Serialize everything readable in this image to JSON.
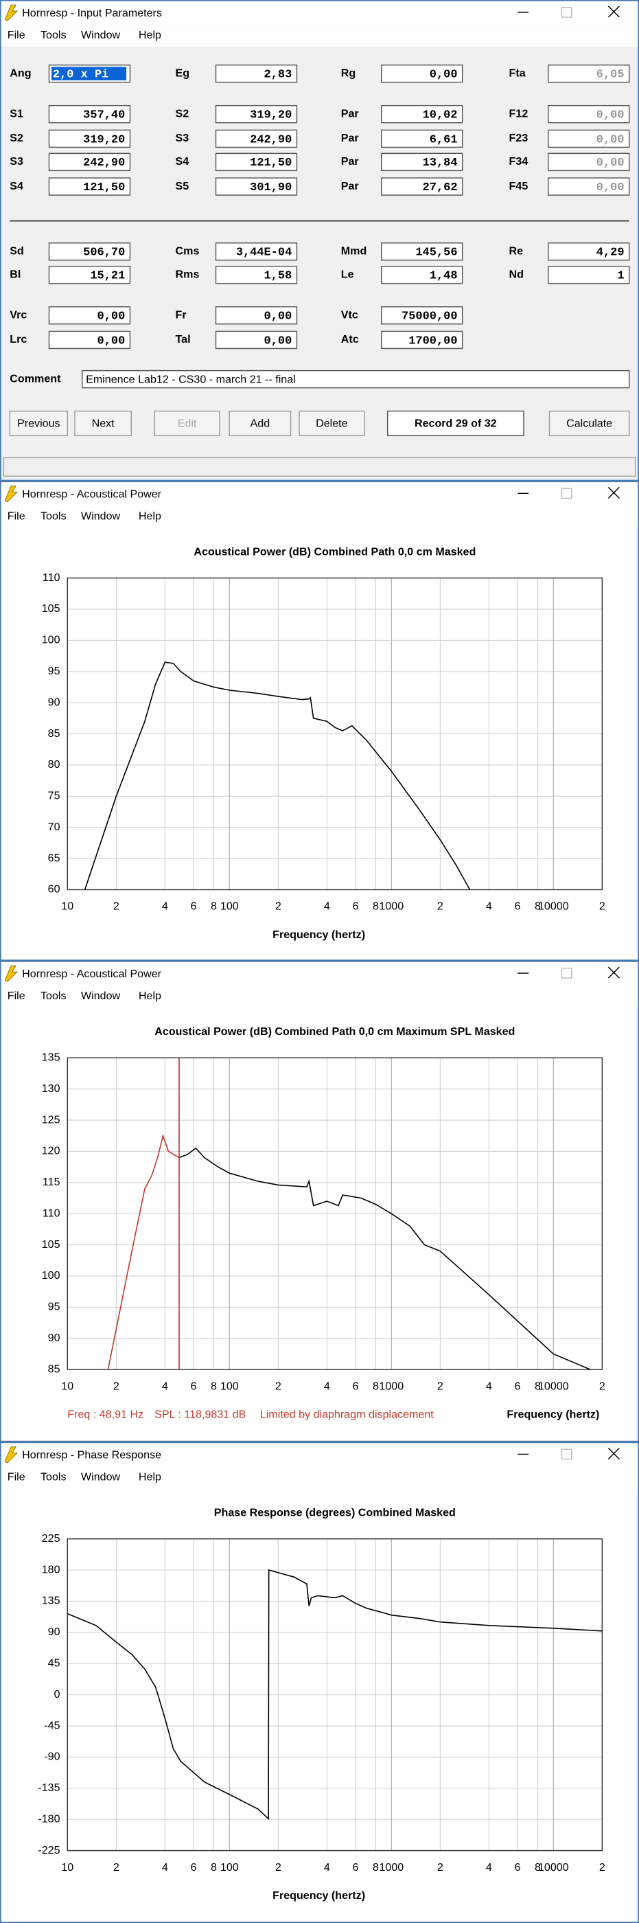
{
  "windows": [
    {
      "title": "Hornresp - Input Parameters",
      "menu": [
        "File",
        "Tools",
        "Window",
        "Help"
      ],
      "rows": [
        [
          {
            "label": "Ang",
            "value": "2,0 x Pi"
          },
          {
            "label": "Eg",
            "value": "2,83"
          },
          {
            "label": "Rg",
            "value": "0,00"
          },
          {
            "label": "Fta",
            "value": "6,05",
            "disabled": true
          }
        ],
        [
          {
            "label": "S1",
            "value": "357,40"
          },
          {
            "label": "S2",
            "value": "319,20"
          },
          {
            "label": "Par",
            "value": "10,02"
          },
          {
            "label": "F12",
            "value": "0,00",
            "disabled": true
          }
        ],
        [
          {
            "label": "S2",
            "value": "319,20"
          },
          {
            "label": "S3",
            "value": "242,90"
          },
          {
            "label": "Par",
            "value": "6,61"
          },
          {
            "label": "F23",
            "value": "0,00",
            "disabled": true
          }
        ],
        [
          {
            "label": "S3",
            "value": "242,90"
          },
          {
            "label": "S4",
            "value": "121,50"
          },
          {
            "label": "Par",
            "value": "13,84"
          },
          {
            "label": "F34",
            "value": "0,00",
            "disabled": true
          }
        ],
        [
          {
            "label": "S4",
            "value": "121,50"
          },
          {
            "label": "S5",
            "value": "301,90"
          },
          {
            "label": "Par",
            "value": "27,62"
          },
          {
            "label": "F45",
            "value": "0,00",
            "disabled": true
          }
        ],
        [
          {
            "label": "Sd",
            "value": "506,70"
          },
          {
            "label": "Cms",
            "value": "3,44E-04"
          },
          {
            "label": "Mmd",
            "value": "145,56"
          },
          {
            "label": "Re",
            "value": "4,29"
          }
        ],
        [
          {
            "label": "Bl",
            "value": "15,21"
          },
          {
            "label": "Rms",
            "value": "1,58"
          },
          {
            "label": "Le",
            "value": "1,48"
          },
          {
            "label": "Nd",
            "value": "1"
          }
        ],
        [
          {
            "label": "Vrc",
            "value": "0,00"
          },
          {
            "label": "Fr",
            "value": "0,00"
          },
          {
            "label": "Vtc",
            "value": "75000,00"
          }
        ],
        [
          {
            "label": "Lrc",
            "value": "0,00"
          },
          {
            "label": "Tal",
            "value": "0,00"
          },
          {
            "label": "Atc",
            "value": "1700,00"
          }
        ]
      ],
      "comment_label": "Comment",
      "comment": "Eminence Lab12 - CS30 - march 21 -- final",
      "buttons": [
        {
          "label": "Previous"
        },
        {
          "label": "Next"
        },
        {
          "label": "Edit",
          "disabled": true
        },
        {
          "label": "Add"
        },
        {
          "label": "Delete"
        },
        {
          "label": "Calculate"
        }
      ],
      "record": "Record 29 of 32"
    },
    {
      "title": "Hornresp - Acoustical Power",
      "menu": [
        "File",
        "Tools",
        "Window",
        "Help"
      ],
      "chart": {
        "type": "line",
        "title": "Acoustical Power (dB)   Combined   Path 0,0 cm   Masked",
        "xlabel": "Frequency (hertz)",
        "xlog": true,
        "grid": true,
        "xlim": [
          10,
          20000
        ],
        "ylim": [
          60,
          110
        ],
        "xticks": [
          10,
          {
            "value": 20,
            "label": "2"
          },
          {
            "value": 40,
            "label": "4"
          },
          {
            "value": 60,
            "label": "6"
          },
          {
            "value": 80,
            "label": "8"
          },
          100,
          {
            "value": 200,
            "label": "2"
          },
          {
            "value": 400,
            "label": "4"
          },
          {
            "value": 600,
            "label": "6"
          },
          {
            "value": 800,
            "label": "8"
          },
          1000,
          {
            "value": 2000,
            "label": "2"
          },
          {
            "value": 4000,
            "label": "4"
          },
          {
            "value": 6000,
            "label": "6"
          },
          {
            "value": 8000,
            "label": "8"
          },
          10000,
          {
            "value": 20000,
            "label": "2"
          }
        ],
        "yticks": [
          60,
          65,
          70,
          75,
          80,
          85,
          90,
          95,
          100,
          105,
          110
        ],
        "series": [
          {
            "color": "#000000",
            "x": [
              12.8,
              20,
              30,
              35,
              40,
              45,
              50,
              60,
              80,
              100,
              150,
              200,
              280,
              310,
              316,
              330,
              400,
              450,
              500,
              570,
              700,
              1000,
              1500,
              2000,
              2500,
              3050
            ],
            "values": [
              60,
              75,
              87,
              93,
              96.5,
              96.3,
              95,
              93.5,
              92.5,
              92,
              91.5,
              91,
              90.5,
              90.6,
              90.8,
              87.5,
              87,
              86,
              85.5,
              86.3,
              84,
              79,
              72.7,
              68,
              64,
              60
            ]
          }
        ]
      }
    },
    {
      "title": "Hornresp - Acoustical Power",
      "menu": [
        "File",
        "Tools",
        "Window",
        "Help"
      ],
      "chart": {
        "type": "line",
        "title": "Acoustical Power (dB)   Combined   Path 0,0 cm   Maximum SPL   Masked",
        "xlabel": "Frequency (hertz)",
        "xlog": true,
        "grid": true,
        "xlim": [
          10,
          20000
        ],
        "ylim": [
          85,
          135
        ],
        "xticks": [
          10,
          {
            "value": 20,
            "label": "2"
          },
          {
            "value": 40,
            "label": "4"
          },
          {
            "value": 60,
            "label": "6"
          },
          {
            "value": 80,
            "label": "8"
          },
          100,
          {
            "value": 200,
            "label": "2"
          },
          {
            "value": 400,
            "label": "4"
          },
          {
            "value": 600,
            "label": "6"
          },
          {
            "value": 800,
            "label": "8"
          },
          1000,
          {
            "value": 2000,
            "label": "2"
          },
          {
            "value": 4000,
            "label": "4"
          },
          {
            "value": 6000,
            "label": "6"
          },
          {
            "value": 8000,
            "label": "8"
          },
          10000,
          {
            "value": 20000,
            "label": "2"
          }
        ],
        "yticks": [
          85,
          90,
          95,
          100,
          105,
          110,
          115,
          120,
          125,
          130,
          135
        ],
        "series": [
          {
            "color": "#c0392b",
            "x": [
              17.8,
              25,
              30,
              33,
              36,
              38.9,
              42,
              48.91
            ],
            "values": [
              85,
              104,
              114,
              116,
              119,
              122.5,
              120,
              118.98
            ]
          },
          {
            "color": "#000000",
            "x": [
              48.91,
              55,
              62,
              70,
              85,
              100,
              150,
              200,
              300,
              310,
              330,
              400,
              470,
              500,
              650,
              800,
              1000,
              1300,
              1600,
              2000,
              4000,
              10000,
              16900
            ],
            "values": [
              118.98,
              119.5,
              120.5,
              119,
              117.5,
              116.5,
              115.2,
              114.6,
              114.3,
              115.2,
              111.3,
              112,
              111.3,
              113,
              112.5,
              111.5,
              110,
              108,
              105,
              104,
              97,
              87.5,
              85
            ]
          }
        ],
        "cursor": {
          "x": 48.91,
          "color": "#c0392b",
          "freq_label": "Freq : 48,91 Hz",
          "spl_label": "SPL : 118,9831 dB",
          "note": "Limited by diaphragm displacement"
        }
      }
    },
    {
      "title": "Hornresp - Phase Response",
      "menu": [
        "File",
        "Tools",
        "Window",
        "Help"
      ],
      "chart": {
        "type": "line",
        "title": "Phase Response (degrees)   Combined   Masked",
        "xlabel": "Frequency (hertz)",
        "xlog": true,
        "grid": true,
        "xlim": [
          10,
          20000
        ],
        "ylim": [
          -225,
          225
        ],
        "xticks": [
          10,
          {
            "value": 20,
            "label": "2"
          },
          {
            "value": 40,
            "label": "4"
          },
          {
            "value": 60,
            "label": "6"
          },
          {
            "value": 80,
            "label": "8"
          },
          100,
          {
            "value": 200,
            "label": "2"
          },
          {
            "value": 400,
            "label": "4"
          },
          {
            "value": 600,
            "label": "6"
          },
          {
            "value": 800,
            "label": "8"
          },
          1000,
          {
            "value": 2000,
            "label": "2"
          },
          {
            "value": 4000,
            "label": "4"
          },
          {
            "value": 6000,
            "label": "6"
          },
          {
            "value": 8000,
            "label": "8"
          },
          10000,
          {
            "value": 20000,
            "label": "2"
          }
        ],
        "yticks": [
          -225,
          -180,
          -135,
          -90,
          -45,
          0,
          45,
          90,
          135,
          180,
          225
        ],
        "series": [
          {
            "color": "#000000",
            "x": [
              10,
              15,
              20,
              25,
              30,
              35,
              40,
              45,
              50,
              70,
              100,
              150,
              174,
              175,
              250,
              300,
              310,
              320,
              350,
              450,
              500,
              600,
              700,
              900,
              1000,
              1500,
              2000,
              4000,
              10000,
              20000
            ],
            "values": [
              117,
              100,
              76,
              58,
              37,
              11,
              -34,
              -78,
              -96,
              -126,
              -144,
              -165,
              -179,
              180,
              170,
              160,
              128,
              140,
              143,
              140,
              143,
              132,
              125,
              118,
              115,
              110,
              105,
              100,
              96,
              92
            ]
          }
        ]
      }
    }
  ]
}
